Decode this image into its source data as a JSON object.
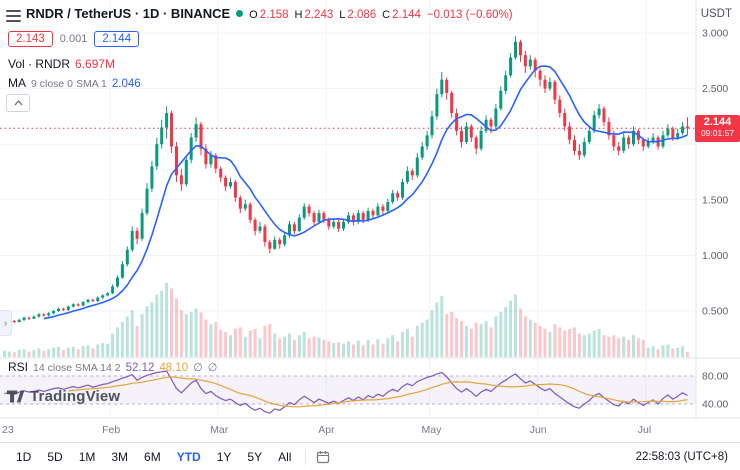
{
  "header": {
    "symbol_title": "RNDR / TetherUS · 1D · BINANCE",
    "market_status": "open",
    "open_label": "O",
    "open": "2.158",
    "high_label": "H",
    "high": "2.243",
    "low_label": "L",
    "low": "2.086",
    "close_label": "C",
    "close": "2.144",
    "change": "−0.013 (−0.60%)",
    "currency": "USDT",
    "bid": "2.143",
    "spread": "0.001",
    "ask": "2.144",
    "volume_label": "Vol · RNDR",
    "volume_value": "6.697M",
    "ma_name": "MA",
    "ma_params": "9 close 0 SMA 1",
    "ma_value": "2.046"
  },
  "rsi_legend": {
    "name": "RSI",
    "params": "14 close SMA 14 2",
    "value1": "52.12",
    "value2": "48.10",
    "extra1": "∅",
    "extra2": "∅"
  },
  "price_line": {
    "price": "2.144",
    "countdown": "09:01:57"
  },
  "watermark": "TradingView",
  "toolbar": {
    "ranges": [
      "1D",
      "5D",
      "1M",
      "3M",
      "6M",
      "YTD",
      "1Y",
      "5Y",
      "All"
    ],
    "active": "YTD",
    "clock": "22:58:03 (UTC+8)"
  },
  "colors": {
    "up": "#089981",
    "down": "#f23645",
    "up_vol": "rgba(8,153,129,0.28)",
    "down_vol": "rgba(242,54,69,0.28)",
    "ma": "#2962ff",
    "rsi": "#7e57c2",
    "rsi_ma": "#e8a33d",
    "grid": "#f0f3fa",
    "axis_border": "#e0e3eb",
    "tick_text": "#5d606b",
    "time_text": "#787b86",
    "price_line": "#f23645",
    "band_fill": "rgba(126,87,194,0.08)",
    "band_line": "#b7aed6"
  },
  "chart_data": {
    "type": "candlestick",
    "symbol": "RNDR/USDT",
    "interval": "1D",
    "exchange": "BINANCE",
    "title": "RNDR / TetherUS · 1D · BINANCE",
    "ylim": [
      0.2,
      3.15
    ],
    "last_price": 2.144,
    "price_axis": {
      "ticks": [
        {
          "label": "3.000",
          "value": 3.0
        },
        {
          "label": "2.500",
          "value": 2.5
        },
        {
          "label": "1.500",
          "value": 1.5
        },
        {
          "label": "1.000",
          "value": 1.0
        },
        {
          "label": "0.500",
          "value": 0.5
        }
      ],
      "grid_values": [
        0.5,
        1.0,
        1.5,
        2.0,
        2.5,
        3.0
      ]
    },
    "x_axis": [
      {
        "label": "23",
        "index": 0
      },
      {
        "label": "Feb",
        "index": 22
      },
      {
        "label": "Mar",
        "index": 44
      },
      {
        "label": "Apr",
        "index": 66
      },
      {
        "label": "May",
        "index": 87
      },
      {
        "label": "Jun",
        "index": 109
      },
      {
        "label": "Jul",
        "index": 131
      }
    ],
    "ma": {
      "type": "SMA",
      "period": 9,
      "source": "close",
      "last": 2.046
    },
    "candles": [
      [
        0.39,
        0.41,
        0.38,
        0.4,
        8
      ],
      [
        0.4,
        0.42,
        0.39,
        0.41,
        7
      ],
      [
        0.41,
        0.42,
        0.39,
        0.4,
        6
      ],
      [
        0.4,
        0.43,
        0.4,
        0.42,
        9
      ],
      [
        0.42,
        0.45,
        0.41,
        0.44,
        10
      ],
      [
        0.44,
        0.45,
        0.42,
        0.43,
        7
      ],
      [
        0.43,
        0.46,
        0.43,
        0.45,
        9
      ],
      [
        0.45,
        0.48,
        0.44,
        0.47,
        11
      ],
      [
        0.47,
        0.48,
        0.45,
        0.46,
        8
      ],
      [
        0.46,
        0.49,
        0.45,
        0.48,
        10
      ],
      [
        0.48,
        0.51,
        0.47,
        0.5,
        12
      ],
      [
        0.5,
        0.53,
        0.49,
        0.52,
        13
      ],
      [
        0.52,
        0.53,
        0.5,
        0.51,
        9
      ],
      [
        0.51,
        0.55,
        0.5,
        0.54,
        12
      ],
      [
        0.54,
        0.57,
        0.53,
        0.56,
        13
      ],
      [
        0.56,
        0.57,
        0.54,
        0.55,
        10
      ],
      [
        0.55,
        0.59,
        0.54,
        0.58,
        14
      ],
      [
        0.58,
        0.61,
        0.57,
        0.6,
        15
      ],
      [
        0.6,
        0.61,
        0.58,
        0.59,
        11
      ],
      [
        0.59,
        0.63,
        0.58,
        0.62,
        16
      ],
      [
        0.62,
        0.65,
        0.61,
        0.64,
        18
      ],
      [
        0.64,
        0.67,
        0.63,
        0.66,
        17
      ],
      [
        0.66,
        0.74,
        0.65,
        0.72,
        30
      ],
      [
        0.72,
        0.82,
        0.71,
        0.8,
        38
      ],
      [
        0.8,
        0.95,
        0.79,
        0.92,
        45
      ],
      [
        0.92,
        1.08,
        0.9,
        1.05,
        52
      ],
      [
        1.05,
        1.26,
        1.03,
        1.22,
        60
      ],
      [
        1.22,
        1.25,
        1.1,
        1.15,
        40
      ],
      [
        1.15,
        1.42,
        1.13,
        1.38,
        55
      ],
      [
        1.38,
        1.65,
        1.36,
        1.6,
        65
      ],
      [
        1.6,
        1.85,
        1.57,
        1.8,
        70
      ],
      [
        1.8,
        2.06,
        1.77,
        2.0,
        80
      ],
      [
        2.0,
        2.22,
        1.96,
        2.15,
        85
      ],
      [
        2.15,
        2.34,
        2.05,
        2.28,
        95
      ],
      [
        2.28,
        2.3,
        1.92,
        1.98,
        88
      ],
      [
        1.98,
        2.02,
        1.66,
        1.72,
        75
      ],
      [
        1.72,
        1.78,
        1.58,
        1.64,
        60
      ],
      [
        1.64,
        1.9,
        1.62,
        1.86,
        55
      ],
      [
        1.86,
        2.1,
        1.83,
        2.06,
        58
      ],
      [
        2.06,
        2.24,
        2.02,
        2.18,
        62
      ],
      [
        2.18,
        2.2,
        1.9,
        1.96,
        57
      ],
      [
        1.96,
        2.0,
        1.78,
        1.82,
        48
      ],
      [
        1.82,
        1.94,
        1.79,
        1.9,
        42
      ],
      [
        1.9,
        1.92,
        1.74,
        1.78,
        45
      ],
      [
        1.78,
        1.8,
        1.66,
        1.7,
        35
      ],
      [
        1.7,
        1.72,
        1.58,
        1.62,
        32
      ],
      [
        1.62,
        1.7,
        1.6,
        1.66,
        28
      ],
      [
        1.66,
        1.68,
        1.48,
        1.52,
        36
      ],
      [
        1.52,
        1.54,
        1.38,
        1.42,
        38
      ],
      [
        1.42,
        1.5,
        1.4,
        1.46,
        26
      ],
      [
        1.46,
        1.48,
        1.29,
        1.32,
        34
      ],
      [
        1.32,
        1.34,
        1.18,
        1.22,
        36
      ],
      [
        1.22,
        1.3,
        1.2,
        1.26,
        24
      ],
      [
        1.26,
        1.28,
        1.08,
        1.12,
        40
      ],
      [
        1.12,
        1.14,
        1.02,
        1.06,
        42
      ],
      [
        1.06,
        1.17,
        1.05,
        1.14,
        30
      ],
      [
        1.14,
        1.16,
        1.06,
        1.1,
        24
      ],
      [
        1.1,
        1.21,
        1.08,
        1.18,
        26
      ],
      [
        1.18,
        1.31,
        1.16,
        1.28,
        30
      ],
      [
        1.28,
        1.3,
        1.19,
        1.22,
        22
      ],
      [
        1.22,
        1.37,
        1.21,
        1.34,
        28
      ],
      [
        1.34,
        1.47,
        1.32,
        1.44,
        32
      ],
      [
        1.44,
        1.46,
        1.35,
        1.38,
        24
      ],
      [
        1.38,
        1.4,
        1.27,
        1.3,
        26
      ],
      [
        1.3,
        1.41,
        1.28,
        1.38,
        25
      ],
      [
        1.38,
        1.4,
        1.29,
        1.32,
        22
      ],
      [
        1.32,
        1.34,
        1.23,
        1.26,
        20
      ],
      [
        1.26,
        1.33,
        1.24,
        1.3,
        18
      ],
      [
        1.3,
        1.32,
        1.21,
        1.24,
        19
      ],
      [
        1.24,
        1.33,
        1.22,
        1.3,
        17
      ],
      [
        1.3,
        1.39,
        1.28,
        1.36,
        20
      ],
      [
        1.36,
        1.38,
        1.27,
        1.3,
        16
      ],
      [
        1.3,
        1.41,
        1.28,
        1.38,
        21
      ],
      [
        1.38,
        1.4,
        1.29,
        1.32,
        15
      ],
      [
        1.32,
        1.43,
        1.3,
        1.4,
        22
      ],
      [
        1.4,
        1.42,
        1.33,
        1.36,
        16
      ],
      [
        1.36,
        1.47,
        1.34,
        1.44,
        23
      ],
      [
        1.44,
        1.46,
        1.37,
        1.4,
        17
      ],
      [
        1.4,
        1.51,
        1.38,
        1.48,
        24
      ],
      [
        1.48,
        1.59,
        1.46,
        1.56,
        28
      ],
      [
        1.56,
        1.58,
        1.49,
        1.52,
        20
      ],
      [
        1.52,
        1.69,
        1.5,
        1.66,
        32
      ],
      [
        1.66,
        1.8,
        1.64,
        1.76,
        36
      ],
      [
        1.76,
        1.78,
        1.68,
        1.72,
        26
      ],
      [
        1.72,
        1.92,
        1.7,
        1.88,
        40
      ],
      [
        1.88,
        2.02,
        1.86,
        1.98,
        44
      ],
      [
        1.98,
        2.12,
        1.95,
        2.08,
        48
      ],
      [
        2.08,
        2.3,
        2.05,
        2.25,
        60
      ],
      [
        2.25,
        2.5,
        2.22,
        2.45,
        70
      ],
      [
        2.45,
        2.65,
        2.42,
        2.58,
        78
      ],
      [
        2.58,
        2.6,
        2.4,
        2.46,
        55
      ],
      [
        2.46,
        2.48,
        2.24,
        2.28,
        58
      ],
      [
        2.28,
        2.32,
        2.08,
        2.12,
        50
      ],
      [
        2.12,
        2.16,
        1.97,
        2.02,
        46
      ],
      [
        2.02,
        2.2,
        2.0,
        2.16,
        40
      ],
      [
        2.16,
        2.18,
        2.02,
        2.06,
        36
      ],
      [
        2.06,
        2.08,
        1.91,
        1.96,
        44
      ],
      [
        1.96,
        2.16,
        1.94,
        2.12,
        42
      ],
      [
        2.12,
        2.26,
        2.1,
        2.22,
        46
      ],
      [
        2.22,
        2.24,
        2.1,
        2.16,
        38
      ],
      [
        2.16,
        2.36,
        2.14,
        2.32,
        52
      ],
      [
        2.32,
        2.52,
        2.3,
        2.48,
        58
      ],
      [
        2.48,
        2.66,
        2.45,
        2.62,
        64
      ],
      [
        2.62,
        2.82,
        2.6,
        2.78,
        72
      ],
      [
        2.78,
        2.97,
        2.76,
        2.92,
        80
      ],
      [
        2.92,
        2.94,
        2.74,
        2.8,
        62
      ],
      [
        2.8,
        2.84,
        2.64,
        2.7,
        52
      ],
      [
        2.7,
        2.8,
        2.67,
        2.76,
        48
      ],
      [
        2.76,
        2.78,
        2.6,
        2.66,
        44
      ],
      [
        2.66,
        2.68,
        2.52,
        2.58,
        40
      ],
      [
        2.58,
        2.62,
        2.46,
        2.5,
        36
      ],
      [
        2.5,
        2.6,
        2.48,
        2.56,
        32
      ],
      [
        2.56,
        2.58,
        2.36,
        2.4,
        42
      ],
      [
        2.4,
        2.44,
        2.24,
        2.28,
        38
      ],
      [
        2.28,
        2.32,
        2.12,
        2.16,
        34
      ],
      [
        2.16,
        2.2,
        2.0,
        2.04,
        36
      ],
      [
        2.04,
        2.08,
        1.9,
        1.94,
        38
      ],
      [
        1.94,
        2.0,
        1.86,
        1.9,
        30
      ],
      [
        1.9,
        2.06,
        1.88,
        2.02,
        28
      ],
      [
        2.02,
        2.16,
        2.0,
        2.12,
        30
      ],
      [
        2.12,
        2.3,
        2.1,
        2.26,
        34
      ],
      [
        2.26,
        2.36,
        2.23,
        2.32,
        36
      ],
      [
        2.32,
        2.34,
        2.16,
        2.2,
        28
      ],
      [
        2.2,
        2.24,
        2.04,
        2.08,
        26
      ],
      [
        2.08,
        2.12,
        1.94,
        1.98,
        28
      ],
      [
        1.98,
        2.02,
        1.9,
        1.94,
        24
      ],
      [
        1.94,
        2.1,
        1.92,
        2.06,
        26
      ],
      [
        2.06,
        2.08,
        1.96,
        2.0,
        22
      ],
      [
        2.0,
        2.16,
        1.98,
        2.12,
        28
      ],
      [
        2.12,
        2.14,
        2.0,
        2.04,
        24
      ],
      [
        2.04,
        2.06,
        1.94,
        1.98,
        22
      ],
      [
        1.98,
        2.06,
        1.96,
        2.02,
        12
      ],
      [
        2.02,
        2.1,
        2.0,
        2.06,
        14
      ],
      [
        2.06,
        2.08,
        1.95,
        1.98,
        10
      ],
      [
        1.98,
        2.12,
        1.96,
        2.08,
        15
      ],
      [
        2.08,
        2.18,
        2.06,
        2.14,
        16
      ],
      [
        2.14,
        2.16,
        2.03,
        2.06,
        11
      ],
      [
        2.06,
        2.14,
        2.04,
        2.1,
        12
      ],
      [
        2.1,
        2.2,
        2.08,
        2.16,
        14
      ],
      [
        2.158,
        2.243,
        2.086,
        2.144,
        6.7
      ]
    ],
    "rsi": {
      "period": 14,
      "sma_period": 14,
      "bands": [
        40,
        80
      ],
      "axis_ticks": [
        {
          "label": "80.00",
          "value": 80
        },
        {
          "label": "40.00",
          "value": 40
        }
      ],
      "last": 52.12,
      "sma_last": 48.1,
      "values": [
        55,
        56,
        54,
        57,
        59,
        57,
        58,
        60,
        58,
        60,
        62,
        63,
        61,
        63,
        65,
        63,
        65,
        67,
        64,
        66,
        68,
        69,
        72,
        74,
        77,
        79,
        82,
        74,
        78,
        81,
        83,
        85,
        86,
        87,
        75,
        62,
        56,
        63,
        70,
        74,
        62,
        55,
        58,
        52,
        48,
        45,
        47,
        42,
        38,
        41,
        35,
        31,
        34,
        29,
        27,
        33,
        31,
        36,
        42,
        39,
        46,
        51,
        47,
        42,
        47,
        44,
        41,
        44,
        41,
        45,
        49,
        45,
        50,
        46,
        52,
        49,
        54,
        51,
        57,
        61,
        58,
        65,
        69,
        66,
        72,
        75,
        78,
        80,
        83,
        85,
        79,
        70,
        62,
        57,
        62,
        57,
        51,
        57,
        61,
        58,
        64,
        70,
        74,
        79,
        83,
        76,
        70,
        73,
        68,
        63,
        59,
        62,
        55,
        50,
        45,
        40,
        36,
        34,
        40,
        45,
        52,
        55,
        49,
        44,
        39,
        37,
        44,
        40,
        47,
        42,
        38,
        42,
        46,
        40,
        48,
        53,
        47,
        51,
        56,
        52.12
      ]
    }
  }
}
